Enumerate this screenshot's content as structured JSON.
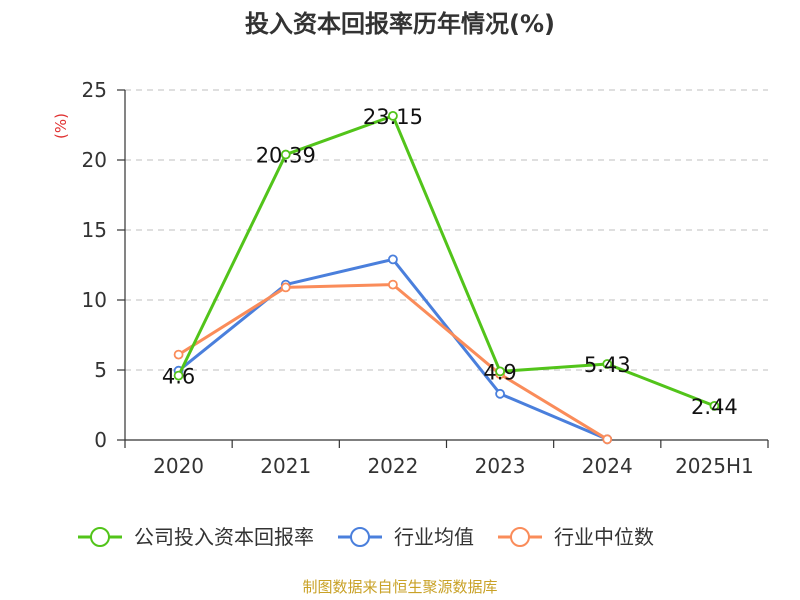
{
  "chart_data": {
    "type": "line",
    "title": "投入资本回报率历年情况(%)",
    "ylabel": "(%)",
    "xlabel": "",
    "categories": [
      "2020",
      "2021",
      "2022",
      "2023",
      "2024",
      "2025H1"
    ],
    "ylim": [
      0,
      25
    ],
    "yticks": [
      0,
      5,
      10,
      15,
      20,
      25
    ],
    "grid": true,
    "legend_position": "bottom",
    "series": [
      {
        "name": "公司投入资本回报率",
        "color": "#52c41a",
        "values": [
          4.6,
          20.39,
          23.15,
          4.9,
          5.43,
          2.44
        ],
        "data_labels": [
          "4.6",
          "20.39",
          "23.15",
          "4.9",
          "5.43",
          "2.44"
        ]
      },
      {
        "name": "行业均值",
        "color": "#4a7fdc",
        "values": [
          4.95,
          11.1,
          12.9,
          3.3,
          0.05,
          null
        ]
      },
      {
        "name": "行业中位数",
        "color": "#fa8c5a",
        "values": [
          6.1,
          10.9,
          11.1,
          4.7,
          0.05,
          null
        ]
      }
    ]
  },
  "source_text": "制图数据来自恒生聚源数据库",
  "colors": {
    "unit_label": "#e03131",
    "source_text": "#c9a227",
    "axis": "#333333",
    "grid": "#cccccc"
  }
}
